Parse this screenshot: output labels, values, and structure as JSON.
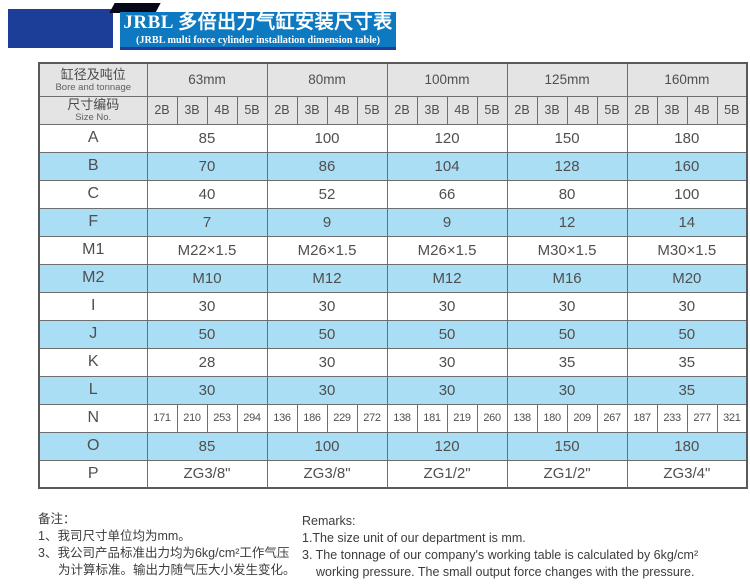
{
  "banner": {
    "title_zh": "JRBL 多倍出力气缸安装尺寸表",
    "title_en": "(JRBL multi force cylinder installation dimension table)"
  },
  "colors": {
    "banner_blue": "#0c79c1",
    "navy_block": "#1d3e98",
    "header_grey": "#e4e4e4",
    "highlight_row_blue": "#aadef5"
  },
  "table": {
    "corner_header": {
      "zh": "缸径及吨位",
      "en": "Bore and tonnage"
    },
    "size_header": {
      "zh": "尺寸编码",
      "en": "Size No."
    },
    "bores": [
      "63mm",
      "80mm",
      "100mm",
      "125mm",
      "160mm"
    ],
    "size_codes": [
      "2B",
      "3B",
      "4B",
      "5B"
    ],
    "rows": [
      {
        "label": "A",
        "type": "merged",
        "highlight": false,
        "values": [
          "85",
          "100",
          "120",
          "150",
          "180"
        ]
      },
      {
        "label": "B",
        "type": "merged",
        "highlight": true,
        "values": [
          "70",
          "86",
          "104",
          "128",
          "160"
        ]
      },
      {
        "label": "C",
        "type": "merged",
        "highlight": false,
        "values": [
          "40",
          "52",
          "66",
          "80",
          "100"
        ]
      },
      {
        "label": "F",
        "type": "merged",
        "highlight": true,
        "values": [
          "7",
          "9",
          "9",
          "12",
          "14"
        ]
      },
      {
        "label": "M1",
        "type": "merged",
        "highlight": false,
        "values": [
          "M22×1.5",
          "M26×1.5",
          "M26×1.5",
          "M30×1.5",
          "M30×1.5"
        ]
      },
      {
        "label": "M2",
        "type": "merged",
        "highlight": true,
        "values": [
          "M10",
          "M12",
          "M12",
          "M16",
          "M20"
        ]
      },
      {
        "label": "I",
        "type": "merged",
        "highlight": false,
        "values": [
          "30",
          "30",
          "30",
          "30",
          "30"
        ]
      },
      {
        "label": "J",
        "type": "merged",
        "highlight": true,
        "values": [
          "50",
          "50",
          "50",
          "50",
          "50"
        ]
      },
      {
        "label": "K",
        "type": "merged",
        "highlight": false,
        "values": [
          "28",
          "30",
          "30",
          "35",
          "35"
        ]
      },
      {
        "label": "L",
        "type": "merged",
        "highlight": true,
        "values": [
          "30",
          "30",
          "30",
          "30",
          "35"
        ]
      },
      {
        "label": "N",
        "type": "per_code",
        "highlight": false,
        "values": [
          [
            "171",
            "210",
            "253",
            "294"
          ],
          [
            "136",
            "186",
            "229",
            "272"
          ],
          [
            "138",
            "181",
            "219",
            "260"
          ],
          [
            "138",
            "180",
            "209",
            "267"
          ],
          [
            "187",
            "233",
            "277",
            "321"
          ]
        ]
      },
      {
        "label": "O",
        "type": "merged",
        "highlight": true,
        "values": [
          "85",
          "100",
          "120",
          "150",
          "180"
        ]
      },
      {
        "label": "P",
        "type": "merged",
        "highlight": false,
        "values": [
          "ZG3/8\"",
          "ZG3/8\"",
          "ZG1/2\"",
          "ZG1/2\"",
          "ZG3/4\""
        ]
      }
    ]
  },
  "remarks_zh": {
    "heading": "备注：",
    "line1": "1、我司尺寸单位均为mm。",
    "line2": "3、我公司产品标准出力均为6kg/cm²工作气压",
    "line3": "为计算标准。输出力随气压大小发生变化。"
  },
  "remarks_en": {
    "heading": "Remarks:",
    "line1": "1.The size unit of our department is mm.",
    "line2": "3. The tonnage of our company's working table is calculated by 6kg/cm²",
    "line3": "working pressure. The small output force changes with the pressure."
  }
}
